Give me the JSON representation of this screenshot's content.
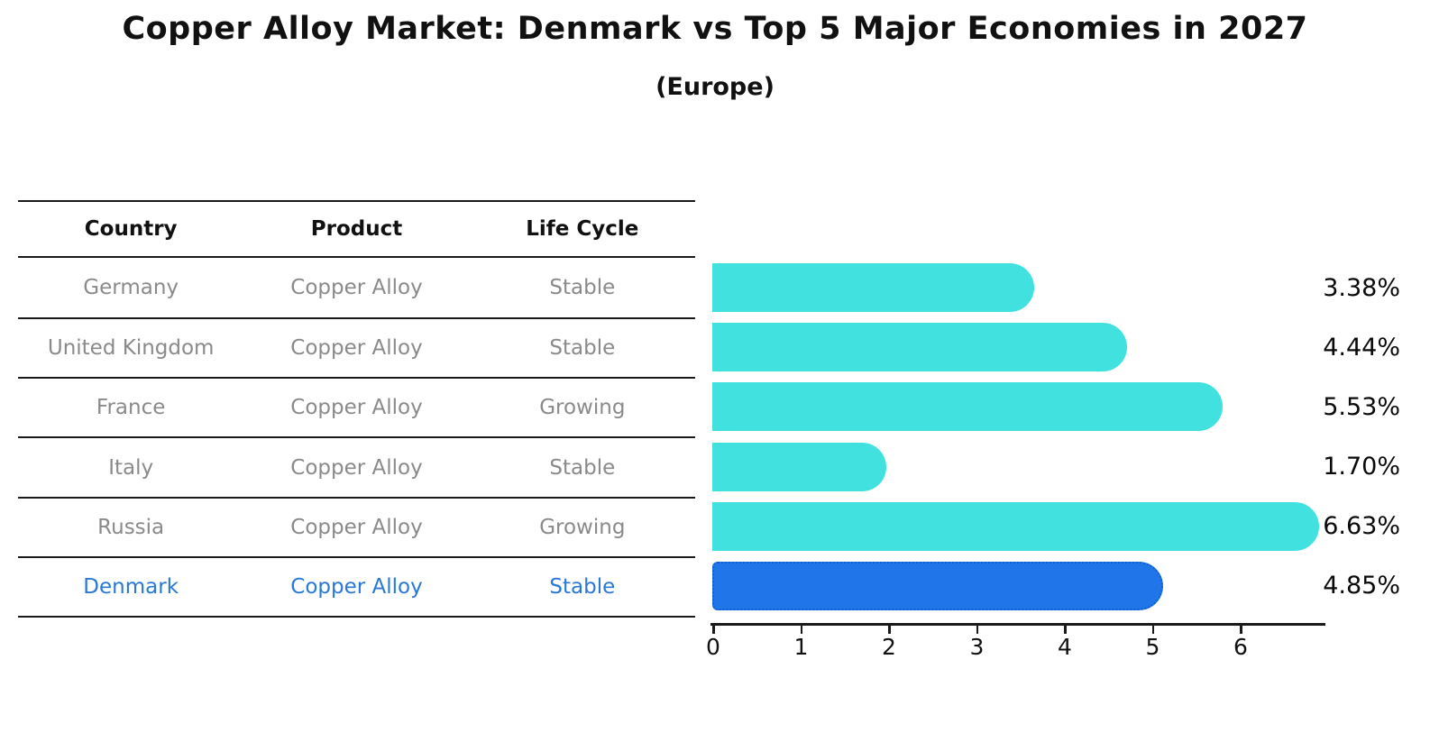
{
  "header": {
    "title": "Copper Alloy Market: Denmark vs Top 5 Major Economies in 2027",
    "subtitle": "(Europe)"
  },
  "table": {
    "columns": [
      "Country",
      "Product",
      "Life Cycle"
    ],
    "rows": [
      {
        "country": "Germany",
        "product": "Copper Alloy",
        "life_cycle": "Stable"
      },
      {
        "country": "United Kingdom",
        "product": "Copper Alloy",
        "life_cycle": "Stable"
      },
      {
        "country": "France",
        "product": "Copper Alloy",
        "life_cycle": "Growing"
      },
      {
        "country": "Italy",
        "product": "Copper Alloy",
        "life_cycle": "Stable"
      },
      {
        "country": "Russia",
        "product": "Copper Alloy",
        "life_cycle": "Growing"
      },
      {
        "country": "Denmark",
        "product": "Copper Alloy",
        "life_cycle": "Stable"
      }
    ]
  },
  "chart_data": {
    "type": "bar",
    "orientation": "horizontal",
    "title": "Copper Alloy Market: Denmark vs Top 5 Major Economies in 2027",
    "subtitle": "(Europe)",
    "categories": [
      "Germany",
      "United Kingdom",
      "France",
      "Italy",
      "Russia",
      "Denmark"
    ],
    "values": [
      3.38,
      4.44,
      5.53,
      1.7,
      6.63,
      4.85
    ],
    "value_labels": [
      "3.38%",
      "4.44%",
      "5.53%",
      "1.70%",
      "6.63%",
      "4.85%"
    ],
    "highlight_index": 5,
    "x_ticks": [
      0,
      1,
      2,
      3,
      4,
      5,
      6
    ],
    "xlim": [
      0,
      7
    ],
    "grid": false,
    "legend": false,
    "colors": {
      "bar": "#40e1de",
      "highlight_bar": "#2076e8",
      "highlight_border": "#0f5fd0",
      "row_text": "#8a8a8a",
      "highlight_text": "#2878d8",
      "header_text": "#111111",
      "axis": "#1a1a1a",
      "value_text": "#0a0a0a",
      "background": "#ffffff"
    }
  }
}
